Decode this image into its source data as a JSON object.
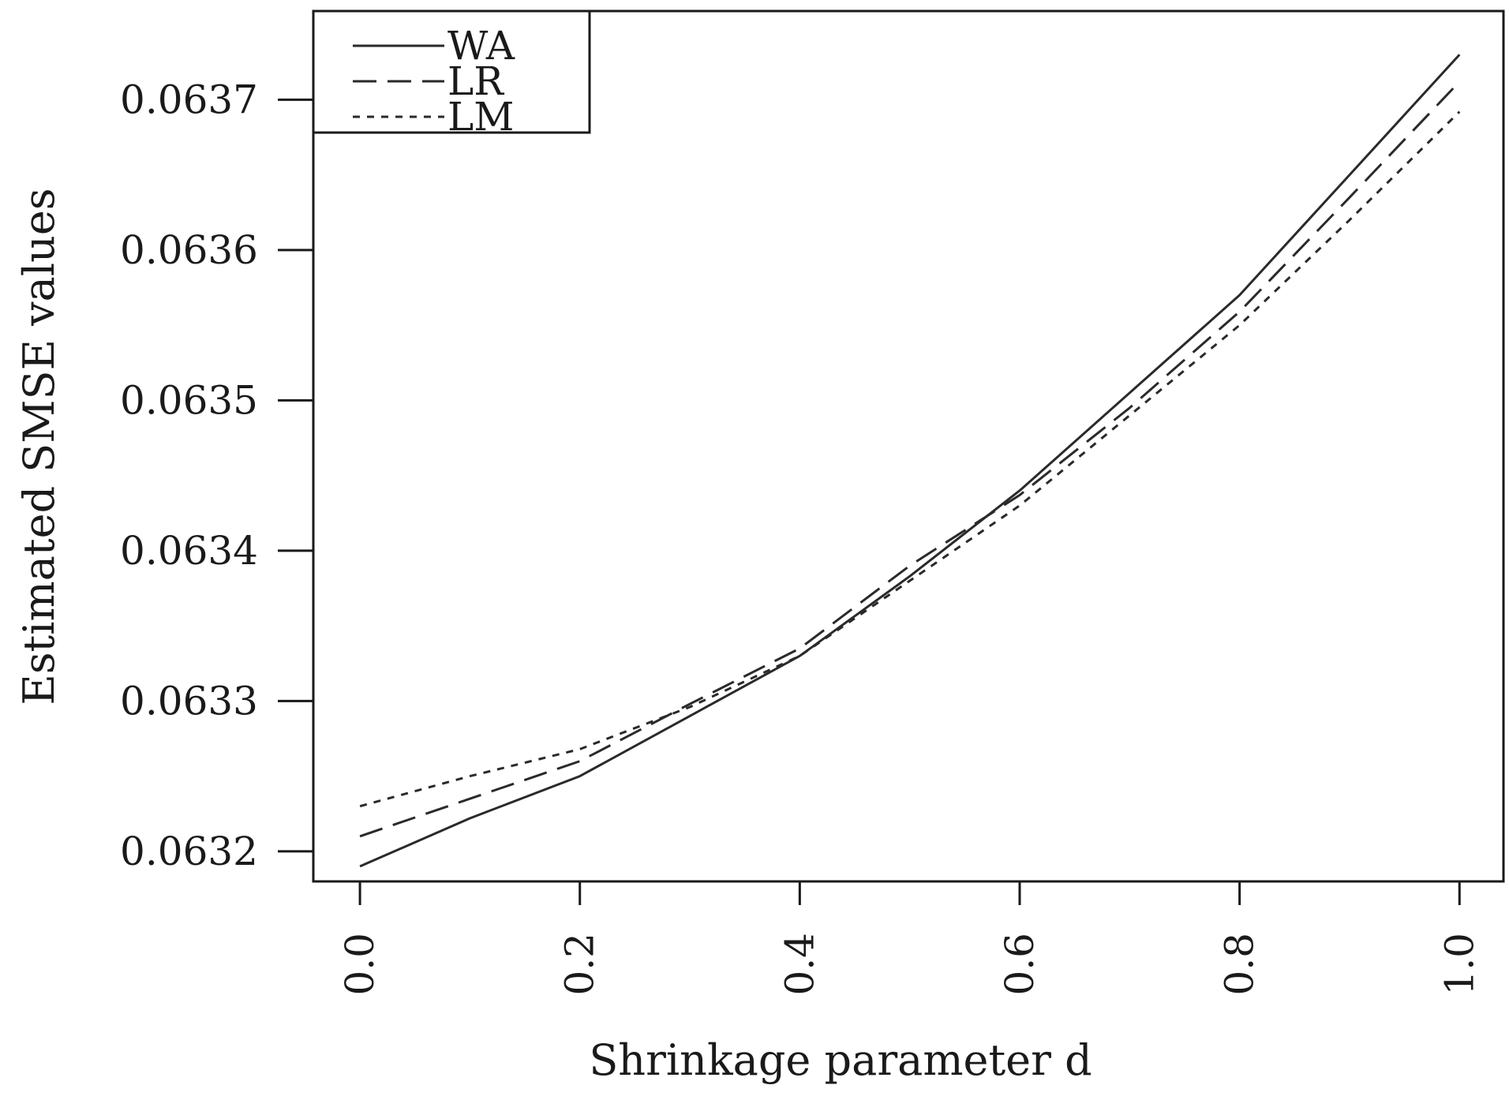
{
  "chart_data": {
    "type": "line",
    "title": "",
    "xlabel": "Shrinkage parameter d",
    "ylabel": "Estimated SMSE values",
    "xlim": [
      -0.0424,
      1.04
    ],
    "ylim": [
      0.06318,
      0.063759
    ],
    "x": [
      0.0,
      0.1,
      0.2,
      0.3,
      0.4,
      0.5,
      0.6,
      0.7,
      0.8,
      0.9,
      1.0
    ],
    "x_ticks": [
      "0.0",
      "0.2",
      "0.4",
      "0.6",
      "0.8",
      "1.0"
    ],
    "y_ticks": [
      "0.0632",
      "0.0633",
      "0.0634",
      "0.0635",
      "0.0636",
      "0.0637"
    ],
    "legend": {
      "position": "top-left"
    },
    "grid": false,
    "series": [
      {
        "name": "WA",
        "style": "solid",
        "values": [
          0.06319,
          0.063222,
          0.06325,
          0.06329,
          0.06333,
          0.063383,
          0.06344,
          0.063505,
          0.06357,
          0.06365,
          0.06373
        ]
      },
      {
        "name": "LR",
        "style": "dashed",
        "values": [
          0.06321,
          0.063235,
          0.06326,
          0.063298,
          0.063335,
          0.06339,
          0.063437,
          0.063495,
          0.063559,
          0.063635,
          0.063712
        ]
      },
      {
        "name": "LM",
        "style": "dotted",
        "values": [
          0.06323,
          0.06325,
          0.063268,
          0.063296,
          0.06333,
          0.06338,
          0.06343,
          0.06349,
          0.06355,
          0.06362,
          0.063692
        ]
      }
    ]
  }
}
